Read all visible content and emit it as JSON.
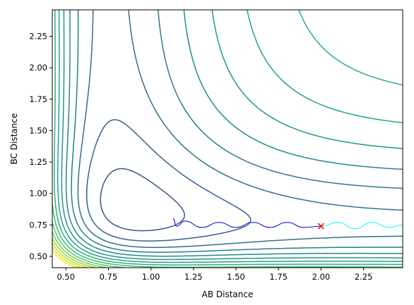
{
  "chart_data": {
    "type": "contour",
    "title": "",
    "xlabel": "AB Distance",
    "ylabel": "BC Distance",
    "xlim": [
      0.42,
      2.48
    ],
    "ylim": [
      0.41,
      2.46
    ],
    "x_ticks": [
      0.5,
      0.75,
      1.0,
      1.25,
      1.5,
      1.75,
      2.0,
      2.25
    ],
    "x_tick_labels": [
      "0.50",
      "0.75",
      "1.00",
      "1.25",
      "1.50",
      "1.75",
      "2.00",
      "2.25"
    ],
    "y_ticks": [
      0.5,
      0.75,
      1.0,
      1.25,
      1.5,
      1.75,
      2.0,
      2.25
    ],
    "y_tick_labels": [
      "0.50",
      "0.75",
      "1.00",
      "1.25",
      "1.50",
      "1.75",
      "2.00",
      "2.25"
    ],
    "colormap": [
      "#440154",
      "#482878",
      "#3e4989",
      "#31688e",
      "#26828e",
      "#1f9e89",
      "#35b779",
      "#6ece58",
      "#b5de2b",
      "#fde725"
    ],
    "contour_levels": 20,
    "series": [
      {
        "color": "#00ffff",
        "x": [
          2.48,
          2.4,
          2.3,
          2.2,
          2.1,
          2.0
        ],
        "y": [
          0.75,
          0.73,
          0.77,
          0.72,
          0.77,
          0.74
        ]
      },
      {
        "color": "#0000cd",
        "x": [
          2.0,
          1.9,
          1.8,
          1.7,
          1.6,
          1.5,
          1.4,
          1.3,
          1.2,
          1.15,
          1.13
        ],
        "y": [
          0.74,
          0.73,
          0.77,
          0.73,
          0.77,
          0.73,
          0.77,
          0.73,
          0.78,
          0.74,
          0.8
        ]
      }
    ],
    "marker": {
      "symbol": "x",
      "color": "#ff0000",
      "x": 2.0,
      "y": 0.74
    }
  }
}
